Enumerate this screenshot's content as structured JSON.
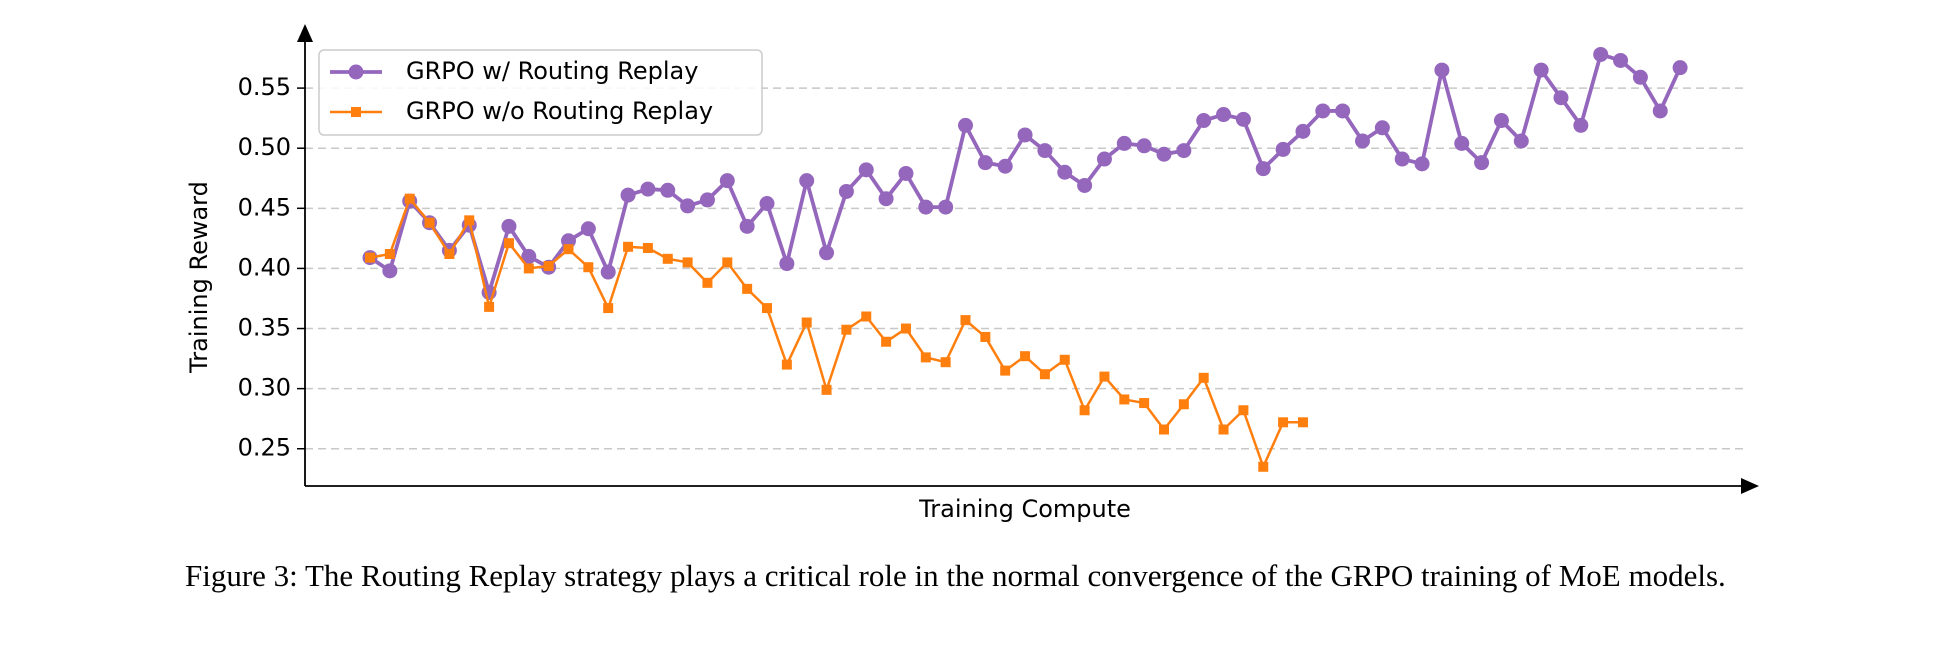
{
  "chart_data": {
    "type": "line",
    "xlabel": "Training Compute",
    "ylabel": "Training Reward",
    "caption": "Figure 3: The Routing Replay strategy plays a critical role in the normal convergence of the GRPO training of MoE models.",
    "categories": [
      null,
      null,
      null,
      null,
      null,
      null,
      null,
      null,
      null,
      null,
      null,
      null,
      null,
      null,
      null,
      null,
      null,
      null,
      null,
      null,
      null,
      null,
      null,
      null,
      null,
      null,
      null,
      null,
      null,
      null,
      null,
      null,
      null,
      null,
      null,
      null,
      null,
      null,
      null,
      null,
      null,
      null,
      null,
      null,
      null,
      null,
      null,
      null,
      null,
      null,
      null,
      null,
      null,
      null,
      null,
      null,
      null,
      null,
      null,
      null,
      null,
      null,
      null,
      null,
      null,
      null,
      null
    ],
    "series": [
      {
        "name": "GRPO w/ Routing Replay",
        "color": "#9467bd",
        "marker": "circle",
        "values": [
          0.409,
          0.398,
          0.456,
          0.438,
          0.415,
          0.436,
          0.38,
          0.435,
          0.41,
          0.401,
          0.423,
          0.433,
          0.397,
          0.461,
          0.466,
          0.465,
          0.452,
          0.457,
          0.473,
          0.435,
          0.454,
          0.404,
          0.473,
          0.413,
          0.464,
          0.482,
          0.458,
          0.479,
          0.451,
          0.451,
          0.519,
          0.488,
          0.485,
          0.511,
          0.498,
          0.48,
          0.469,
          0.491,
          0.504,
          0.502,
          0.495,
          0.498,
          0.523,
          0.528,
          0.524,
          0.483,
          0.499,
          0.514,
          0.531,
          0.531,
          0.506,
          0.517,
          0.491,
          0.487,
          0.565,
          0.504,
          0.488,
          0.523,
          0.506,
          0.565,
          0.542,
          0.519,
          0.578,
          0.573,
          0.559,
          0.531,
          0.567
        ]
      },
      {
        "name": "GRPO w/o Routing Replay",
        "color": "#ff7f0e",
        "marker": "square",
        "values": [
          0.409,
          0.412,
          0.458,
          0.438,
          0.412,
          0.44,
          0.368,
          0.421,
          0.4,
          0.402,
          0.416,
          0.401,
          0.367,
          0.418,
          0.417,
          0.408,
          0.405,
          0.388,
          0.405,
          0.383,
          0.367,
          0.32,
          0.355,
          0.299,
          0.349,
          0.36,
          0.339,
          0.35,
          0.326,
          0.322,
          0.357,
          0.343,
          0.315,
          0.327,
          0.312,
          0.324,
          0.282,
          0.31,
          0.291,
          0.288,
          0.266,
          0.287,
          0.309,
          0.266,
          0.282,
          0.235,
          0.272,
          0.272,
          null,
          null,
          null,
          null,
          null,
          null,
          null,
          null,
          null,
          null,
          null,
          null,
          null,
          null,
          null,
          null,
          null,
          null,
          null
        ]
      }
    ],
    "ylim": [
      0.219,
      0.6
    ],
    "yticks": [
      0.25,
      0.3,
      0.35,
      0.4,
      0.45,
      0.5,
      0.55
    ],
    "ytick_labels": [
      "0.25",
      "0.30",
      "0.35",
      "0.40",
      "0.45",
      "0.50",
      "0.55"
    ],
    "grid": true,
    "legend": "upper left"
  }
}
